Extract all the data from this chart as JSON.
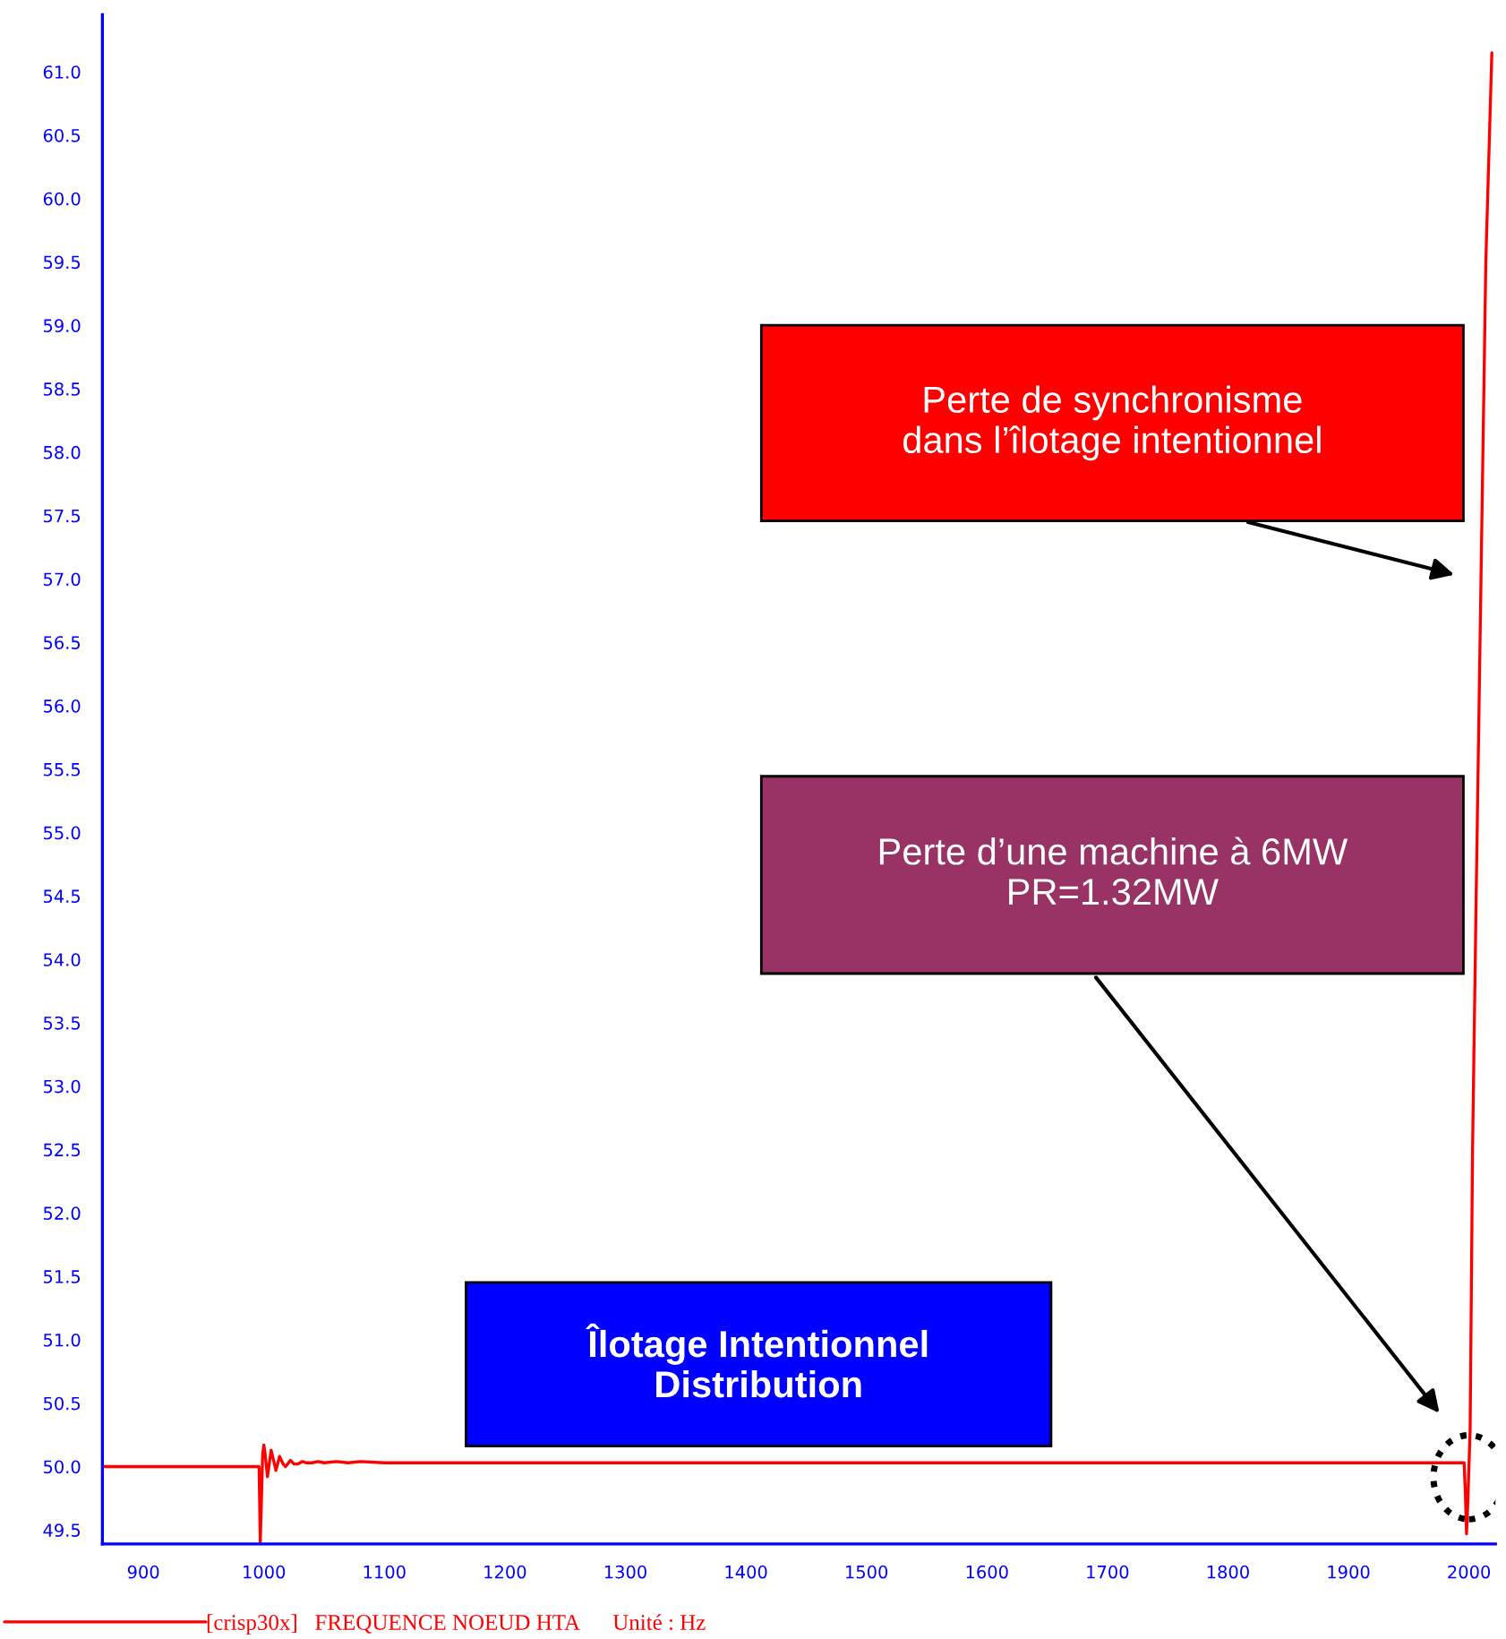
{
  "chart_data": {
    "type": "line",
    "x": [
      866,
      996,
      997,
      998,
      999,
      1000,
      1001,
      1003,
      1006,
      1008,
      1010,
      1013,
      1016,
      1018,
      1022,
      1025,
      1028,
      1032,
      1035,
      1040,
      1045,
      1050,
      1060,
      1070,
      1080,
      1100,
      1500,
      1996,
      1997,
      1998,
      1999,
      2001,
      2003,
      2006,
      2010,
      2014,
      2019
    ],
    "series": [
      {
        "name": "[crisp30x]   FREQUENCE NOEUD HTA      Unité : Hz",
        "color": "#ff0000",
        "values": [
          50.0,
          50.0,
          49.4,
          49.75,
          50.1,
          50.17,
          50.1,
          49.92,
          50.13,
          50.05,
          49.97,
          50.08,
          50.02,
          50.0,
          50.05,
          50.02,
          50.02,
          50.04,
          50.03,
          50.03,
          50.04,
          50.03,
          50.04,
          50.03,
          50.04,
          50.03,
          50.03,
          50.03,
          49.8,
          49.47,
          49.7,
          50.3,
          52.5,
          54.5,
          57.0,
          59.5,
          61.15
        ]
      }
    ],
    "xlim": [
      866,
      2022
    ],
    "ylim": [
      49.39,
      61.45
    ],
    "xticks": [
      900,
      1000,
      1100,
      1200,
      1300,
      1400,
      1500,
      1600,
      1700,
      1800,
      1900,
      2000
    ],
    "yticks": [
      49.5,
      {
        "value": 50,
        "label": "50.0"
      },
      50.5,
      {
        "value": 51,
        "label": "51.0"
      },
      51.5,
      {
        "value": 52,
        "label": "52.0"
      },
      52.5,
      {
        "value": 53,
        "label": "53.0"
      },
      53.5,
      {
        "value": 54,
        "label": "54.0"
      },
      54.5,
      {
        "value": 55,
        "label": "55.0"
      },
      55.5,
      {
        "value": 56,
        "label": "56.0"
      },
      56.5,
      {
        "value": 57,
        "label": "57.0"
      },
      57.5,
      {
        "value": 58,
        "label": "58.0"
      },
      58.5,
      {
        "value": 59,
        "label": "59.0"
      },
      59.5,
      {
        "value": 60,
        "label": "60.0"
      },
      60.5,
      {
        "value": 61,
        "label": "61.0"
      }
    ],
    "annotations": [
      "Perte de synchronisme\ndans l’îlotage intentionnel",
      "Perte d’une machine à 6MW\nPR=1.32MW",
      "Îlotage Intentionnel\nDistribution"
    ],
    "grid": false,
    "legend": "bottom",
    "marker": "none",
    "line_style": "solid"
  }
}
